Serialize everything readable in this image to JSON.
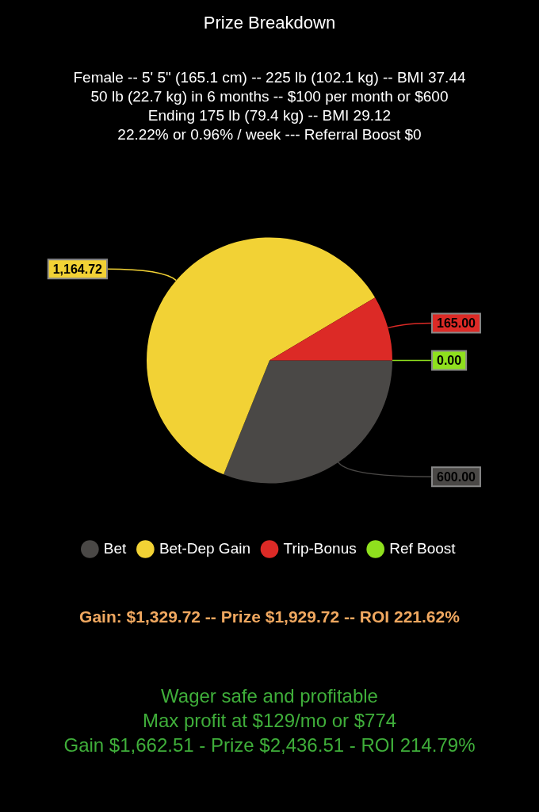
{
  "chart_data": {
    "type": "pie",
    "title": "Prize Breakdown",
    "subtitle": "Female -- 5' 5\" (165.1 cm) -- 225 lb (102.1 kg) -- BMI 37.44\n50 lb (22.7 kg) in 6 months -- $100 per month or $600\nEnding 175 lb (79.4 kg) -- BMI 29.12\n22.22% or 0.96% / week --- Referral Boost $0",
    "categories": [
      "Bet",
      "Bet-Dep Gain",
      "Trip-Bonus",
      "Ref Boost"
    ],
    "values": [
      600,
      1164.72,
      165,
      0
    ],
    "value_labels": [
      "600.00",
      "1,164.72",
      "165.00",
      "0.00"
    ],
    "colors": [
      "#4a4846",
      "#f2d235",
      "#dc2a26",
      "#8fe01e"
    ],
    "legend": "bottom",
    "annotations": [
      "Gain: $1,329.72 -- Prize $1,929.72 -- ROI 221.62%",
      "Wager safe and profitable",
      "Max profit at $129/mo or $774",
      "Gain $1,662.51 - Prize $2,436.51 - ROI 214.79%"
    ]
  }
}
